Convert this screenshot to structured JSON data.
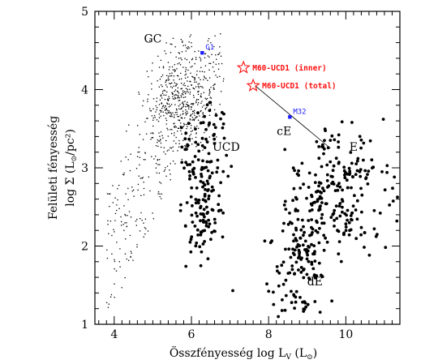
{
  "chart_data": {
    "type": "scatter",
    "title": "",
    "xlabel": {
      "prefix": "Összfényesség",
      "math": "log L",
      "sub": "V",
      "unit_open": " (L",
      "unit_sub": "⊙",
      "unit_close": ")"
    },
    "ylabel": {
      "line1": "Felületi fényesség",
      "math": "log Σ (L",
      "unit_sub": "⊙",
      "unit_tail": "/pc²)"
    },
    "xlim": [
      3.5,
      11.4
    ],
    "ylim": [
      1,
      5
    ],
    "xticks": [
      4,
      6,
      8,
      10
    ],
    "yticks": [
      1,
      2,
      3,
      4,
      5
    ],
    "xtick_labels": [
      "4",
      "6",
      "8",
      "10"
    ],
    "ytick_labels": [
      "1",
      "2",
      "3",
      "4",
      "5"
    ],
    "grid": false,
    "legend": "none",
    "colors": {
      "axis": "#000000",
      "galaxies": "#000000",
      "highlight": "#1a1aff",
      "m60": "#ff1010"
    },
    "region_labels": [
      {
        "text": "GC",
        "x": 5.0,
        "y": 4.6
      },
      {
        "text": "UCD",
        "x": 6.9,
        "y": 3.22
      },
      {
        "text": "cE",
        "x": 8.4,
        "y": 3.42
      },
      {
        "text": "E",
        "x": 10.2,
        "y": 3.22
      },
      {
        "text": "dE",
        "x": 9.2,
        "y": 1.5
      }
    ],
    "highlighted": [
      {
        "name": "G1",
        "x": 6.28,
        "y": 4.47
      },
      {
        "name": "M32",
        "x": 8.55,
        "y": 3.65
      }
    ],
    "m60_points": [
      {
        "name": "M60-UCD1 (inner)",
        "x": 7.35,
        "y": 4.28
      },
      {
        "name": "M60-UCD1 (total)",
        "x": 7.6,
        "y": 4.05
      }
    ],
    "connector": {
      "from": [
        7.65,
        4.05
      ],
      "to": [
        9.6,
        3.25
      ]
    }
  }
}
